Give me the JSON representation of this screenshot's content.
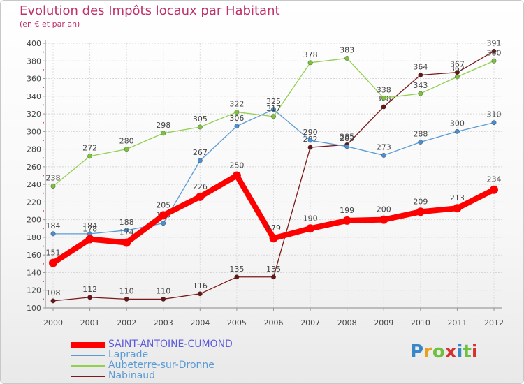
{
  "header": {
    "title": "Evolution des Impôts locaux par Habitant",
    "subtitle": "(en € et par an)"
  },
  "logo": {
    "text": "Proxiti",
    "colors": [
      "#3a87c8",
      "#e8a020",
      "#6fbf40",
      "#d83030",
      "#3a87c8",
      "#6fbf40",
      "#d83030"
    ]
  },
  "chart_data": {
    "type": "line",
    "title": "Evolution des Impôts locaux par Habitant",
    "subtitle": "(en € et par an)",
    "categories": [
      "2000",
      "2001",
      "2002",
      "2003",
      "2004",
      "2005",
      "2006",
      "2007",
      "2008",
      "2009",
      "2010",
      "2011",
      "2012"
    ],
    "ylim": [
      100,
      400
    ],
    "yticks": [
      100,
      120,
      140,
      160,
      180,
      200,
      220,
      240,
      260,
      280,
      300,
      320,
      340,
      360,
      380,
      400
    ],
    "grid": true,
    "legend_position": "bottom-left",
    "series": [
      {
        "name": "SAINT-ANTOINE-CUMOND",
        "color": "#ff0000",
        "values": [
          151,
          178,
          174,
          205,
          226,
          250,
          179,
          190,
          199,
          200,
          209,
          213,
          234
        ]
      },
      {
        "name": "Laprade",
        "color": "#5b9bd5",
        "values": [
          184,
          184,
          188,
          196,
          267,
          306,
          325,
          290,
          283,
          273,
          288,
          300,
          310
        ]
      },
      {
        "name": "Aubeterre-sur-Dronne",
        "color": "#92d050",
        "values": [
          238,
          272,
          280,
          298,
          305,
          322,
          317,
          378,
          383,
          338,
          343,
          362,
          380
        ]
      },
      {
        "name": "Nabinaud",
        "color": "#7b1a1a",
        "values": [
          108,
          112,
          110,
          110,
          116,
          135,
          135,
          282,
          285,
          328,
          364,
          367,
          391
        ]
      }
    ]
  }
}
